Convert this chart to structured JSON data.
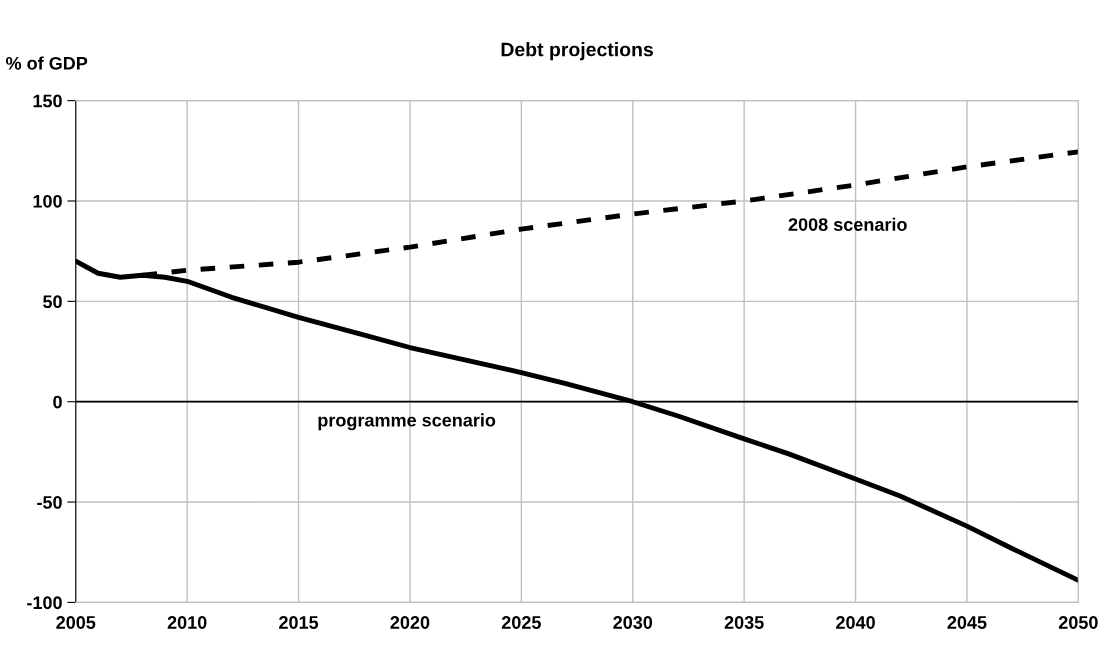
{
  "chart_data": {
    "type": "line",
    "title": "Debt projections",
    "ylabel": "% of GDP",
    "xlim": [
      2005,
      2050
    ],
    "xticks": [
      2005,
      2010,
      2015,
      2020,
      2025,
      2030,
      2035,
      2040,
      2045,
      2050
    ],
    "ylim": [
      -100,
      150
    ],
    "yticks": [
      -100,
      -50,
      0,
      50,
      100,
      150
    ],
    "grid": true,
    "legend": false,
    "series": [
      {
        "name": "programme scenario",
        "color": "#000000",
        "line_style": "solid",
        "x": [
          2005,
          2006,
          2007,
          2008,
          2009,
          2010,
          2012,
          2015,
          2018,
          2020,
          2025,
          2027,
          2030,
          2032,
          2035,
          2037,
          2040,
          2042,
          2045,
          2047,
          2050
        ],
        "values": [
          70,
          64,
          62,
          63,
          62,
          60,
          52,
          42,
          33,
          27,
          14.5,
          9,
          0,
          -7,
          -18.5,
          -26,
          -38.5,
          -47,
          -62,
          -73,
          -89
        ]
      },
      {
        "name": "2008 scenario",
        "color": "#000000",
        "line_style": "dashed",
        "x": [
          2008,
          2010,
          2015,
          2020,
          2025,
          2030,
          2035,
          2040,
          2045,
          2050
        ],
        "values": [
          63,
          65.5,
          69.5,
          77,
          86,
          93.5,
          100,
          108,
          117,
          124.5
        ]
      }
    ],
    "ref_lines": [
      {
        "axis": "y",
        "value": 0,
        "color": "#000000"
      }
    ]
  }
}
